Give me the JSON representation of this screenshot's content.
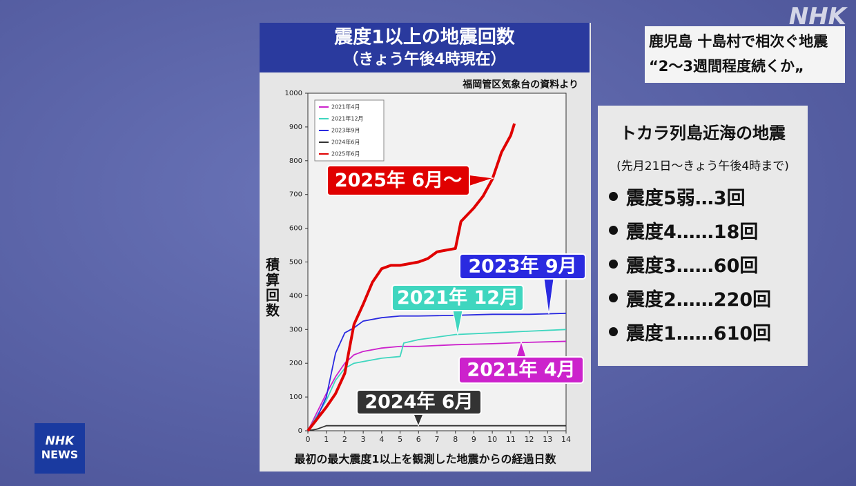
{
  "chart_data": {
    "type": "line",
    "title": "震度1以上の地震回数",
    "subtitle": "（きょう午後4時現在）",
    "source": "福岡管区気象台の資料より",
    "ylabel": "積算回数",
    "xlabel": "最初の最大震度1以上を観測した地震からの経過日数",
    "xlim": [
      0,
      14
    ],
    "xticks": [
      0,
      1,
      2,
      3,
      4,
      5,
      6,
      7,
      8,
      9,
      10,
      11,
      12,
      13,
      14
    ],
    "ylim": [
      0,
      1000
    ],
    "yticks": [
      0,
      100,
      200,
      300,
      400,
      500,
      600,
      700,
      800,
      900,
      1000
    ],
    "legend": "upper left",
    "series": [
      {
        "name": "2021年4月",
        "label": "2021年 4月",
        "color": "#cc22cc",
        "x": [
          0,
          1,
          1.5,
          2,
          2.5,
          3,
          4,
          5,
          6,
          8,
          10,
          12,
          14
        ],
        "values": [
          0,
          110,
          160,
          200,
          225,
          235,
          245,
          250,
          250,
          255,
          258,
          262,
          265
        ]
      },
      {
        "name": "2021年12月",
        "label": "2021年 12月",
        "color": "#3fd6bf",
        "x": [
          0,
          1,
          1.5,
          2,
          2.5,
          3,
          4,
          5,
          5.2,
          6,
          8,
          10,
          12,
          14
        ],
        "values": [
          0,
          90,
          150,
          185,
          200,
          205,
          215,
          220,
          260,
          270,
          285,
          290,
          295,
          300
        ]
      },
      {
        "name": "2023年9月",
        "label": "2023年 9月",
        "color": "#2a2ae0",
        "x": [
          0,
          0.5,
          1,
          1.5,
          2,
          2.5,
          3,
          4,
          5,
          6,
          8,
          10,
          12,
          14
        ],
        "values": [
          0,
          40,
          100,
          230,
          290,
          305,
          325,
          335,
          340,
          340,
          342,
          345,
          345,
          348
        ]
      },
      {
        "name": "2024年6月",
        "label": "2024年 6月",
        "color": "#333333",
        "x": [
          0,
          0.5,
          1,
          2,
          14
        ],
        "values": [
          0,
          5,
          15,
          15,
          15
        ]
      },
      {
        "name": "2025年6月",
        "label": "2025年 6月〜",
        "color": "#e00000",
        "x": [
          0,
          1,
          1.5,
          2,
          2.5,
          3,
          3.5,
          4,
          4.5,
          5,
          6,
          6.5,
          7,
          8,
          8.3,
          9,
          9.5,
          10,
          10.5,
          11,
          11.2
        ],
        "values": [
          0,
          70,
          110,
          170,
          315,
          375,
          440,
          480,
          490,
          490,
          500,
          510,
          530,
          540,
          620,
          660,
          695,
          745,
          825,
          875,
          910
        ]
      }
    ]
  },
  "headline": {
    "line1": "鹿児島 十島村で相次ぐ地震",
    "line2": "“2〜3週間程度続くか„"
  },
  "info": {
    "title": "トカラ列島近海の地震",
    "subtitle": "(先月21日〜きょう午後4時まで)",
    "items": [
      "震度5弱…3回",
      "震度4……18回",
      "震度3……60回",
      "震度2……220回",
      "震度1……610回"
    ]
  },
  "logo": "NHK",
  "news_logo": {
    "line1": "NHK",
    "line2": "NEWS"
  }
}
